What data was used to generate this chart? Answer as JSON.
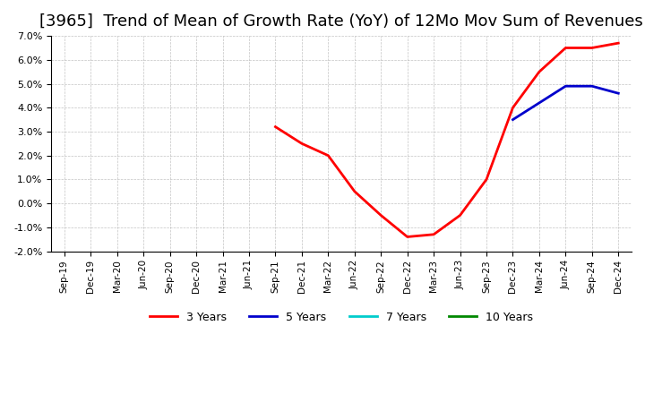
{
  "title": "[3965]  Trend of Mean of Growth Rate (YoY) of 12Mo Mov Sum of Revenues",
  "title_fontsize": 13,
  "ylabel_fontsize": 9,
  "xlabel_fontsize": 8,
  "ylim": [
    -0.02,
    0.07
  ],
  "yticks": [
    -0.02,
    -0.01,
    0.0,
    0.01,
    0.02,
    0.03,
    0.04,
    0.05,
    0.06,
    0.07
  ],
  "background_color": "#ffffff",
  "grid_color": "#aaaaaa",
  "series": {
    "3yr": {
      "color": "#ff0000",
      "label": "3 Years",
      "x": [
        "Sep-19",
        "Dec-19",
        "Mar-20",
        "Jun-20",
        "Sep-20",
        "Dec-20",
        "Mar-21",
        "Jun-21",
        "Sep-21",
        "Dec-21",
        "Mar-22",
        "Jun-22",
        "Sep-22",
        "Dec-22",
        "Mar-23",
        "Jun-23",
        "Sep-23",
        "Dec-23",
        "Mar-24",
        "Jun-24",
        "Sep-24",
        "Dec-24"
      ],
      "y": [
        null,
        null,
        null,
        null,
        null,
        null,
        null,
        null,
        0.032,
        0.025,
        0.02,
        0.005,
        -0.005,
        -0.014,
        -0.013,
        -0.005,
        0.01,
        0.04,
        0.055,
        0.065,
        0.065,
        0.067
      ]
    },
    "5yr": {
      "color": "#0000cc",
      "label": "5 Years",
      "x": [
        "Sep-19",
        "Dec-19",
        "Mar-20",
        "Jun-20",
        "Sep-20",
        "Dec-20",
        "Mar-21",
        "Jun-21",
        "Sep-21",
        "Dec-21",
        "Mar-22",
        "Jun-22",
        "Sep-22",
        "Dec-22",
        "Mar-23",
        "Jun-23",
        "Sep-23",
        "Dec-23",
        "Mar-24",
        "Jun-24",
        "Sep-24",
        "Dec-24"
      ],
      "y": [
        null,
        null,
        null,
        null,
        null,
        null,
        null,
        null,
        null,
        null,
        null,
        null,
        null,
        null,
        null,
        null,
        null,
        0.035,
        0.042,
        0.049,
        0.049,
        0.046
      ]
    },
    "7yr": {
      "color": "#00cccc",
      "label": "7 Years",
      "x": [
        "Sep-19",
        "Dec-19",
        "Mar-20",
        "Jun-20",
        "Sep-20",
        "Dec-20",
        "Mar-21",
        "Jun-21",
        "Sep-21",
        "Dec-21",
        "Mar-22",
        "Jun-22",
        "Sep-22",
        "Dec-22",
        "Mar-23",
        "Jun-23",
        "Sep-23",
        "Dec-23",
        "Mar-24",
        "Jun-24",
        "Sep-24",
        "Dec-24"
      ],
      "y": [
        null,
        null,
        null,
        null,
        null,
        null,
        null,
        null,
        null,
        null,
        null,
        null,
        null,
        null,
        null,
        null,
        null,
        null,
        null,
        null,
        null,
        null
      ]
    },
    "10yr": {
      "color": "#008800",
      "label": "10 Years",
      "x": [
        "Sep-19",
        "Dec-19",
        "Mar-20",
        "Jun-20",
        "Sep-20",
        "Dec-20",
        "Mar-21",
        "Jun-21",
        "Sep-21",
        "Dec-21",
        "Mar-22",
        "Jun-22",
        "Sep-22",
        "Dec-22",
        "Mar-23",
        "Jun-23",
        "Sep-23",
        "Dec-23",
        "Mar-24",
        "Jun-24",
        "Sep-24",
        "Dec-24"
      ],
      "y": [
        null,
        null,
        null,
        null,
        null,
        null,
        null,
        null,
        null,
        null,
        null,
        null,
        null,
        null,
        null,
        null,
        null,
        null,
        null,
        null,
        null,
        null
      ]
    }
  },
  "xtick_labels": [
    "Sep-19",
    "Dec-19",
    "Mar-20",
    "Jun-20",
    "Sep-20",
    "Dec-20",
    "Mar-21",
    "Jun-21",
    "Sep-21",
    "Dec-21",
    "Mar-22",
    "Jun-22",
    "Sep-22",
    "Dec-22",
    "Mar-23",
    "Jun-23",
    "Sep-23",
    "Dec-23",
    "Mar-24",
    "Jun-24",
    "Sep-24",
    "Dec-24"
  ],
  "legend_labels": [
    "3 Years",
    "5 Years",
    "7 Years",
    "10 Years"
  ],
  "legend_colors": [
    "#ff0000",
    "#0000cc",
    "#00cccc",
    "#008800"
  ]
}
